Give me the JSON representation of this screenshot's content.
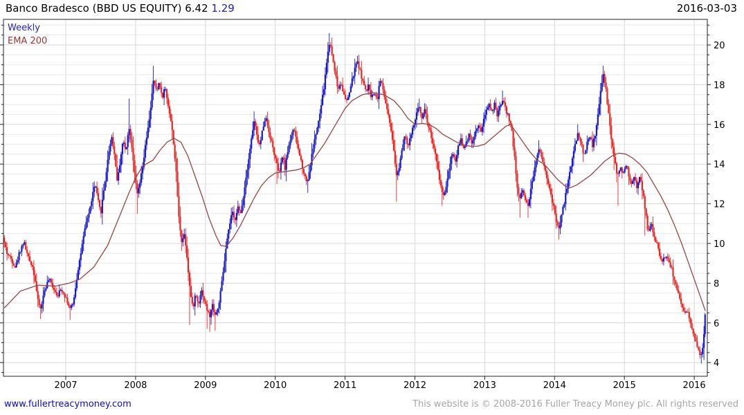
{
  "header": {
    "title_main": "Banco Bradesco (BBD US EQUITY) 6.42",
    "title_change": "1.29",
    "date": "2016-03-03"
  },
  "legend": {
    "timeframe": "Weekly",
    "overlay": "EMA 200"
  },
  "footer": {
    "site": "www.fullertreacymoney.com",
    "copyright": "This website is © 2008-2016 Fuller Treacy Money plc. All rights reserved"
  },
  "colors": {
    "up_candle": "#1717cd",
    "down_candle": "#e82525",
    "ema_line": "#9a4343",
    "grid_minor": "#e8e8e8",
    "grid_major": "#d7d7d7",
    "border": "#222222",
    "change_text": "#1a1ac8",
    "weekly_text": "#2323bb",
    "ema_text": "#993333",
    "link_text": "#0a0acc",
    "copyright_text": "#a5a5a5"
  },
  "chart_data": {
    "type": "candlestick",
    "title": "Banco Bradesco (BBD US EQUITY)",
    "timeframe": "Weekly",
    "overlay": "EMA 200",
    "last_price": 6.42,
    "change": 1.29,
    "date": "2016-03-03",
    "x_ticks": [
      2007,
      2008,
      2009,
      2010,
      2011,
      2012,
      2013,
      2014,
      2015,
      2016
    ],
    "y_ticks": [
      4,
      6,
      8,
      10,
      12,
      14,
      16,
      18,
      20
    ],
    "y_minor_step": 0.5,
    "x_range": [
      2006.08,
      2016.22
    ],
    "y_range": [
      3.3,
      21.3
    ],
    "legend_position": "top-left",
    "grid": true,
    "close_anchors": [
      [
        2006.08,
        10.1
      ],
      [
        2006.1,
        10.3
      ],
      [
        2006.16,
        9.5
      ],
      [
        2006.22,
        9.2
      ],
      [
        2006.28,
        8.8
      ],
      [
        2006.34,
        9.6
      ],
      [
        2006.4,
        10.1
      ],
      [
        2006.46,
        9.3
      ],
      [
        2006.52,
        8.9
      ],
      [
        2006.56,
        8.2
      ],
      [
        2006.6,
        7.1
      ],
      [
        2006.64,
        6.7,
        6.2
      ],
      [
        2006.7,
        7.7
      ],
      [
        2006.76,
        8.2
      ],
      [
        2006.82,
        7.8
      ],
      [
        2006.88,
        7.4
      ],
      [
        2006.94,
        7.7
      ],
      [
        2007.0,
        7.3
      ],
      [
        2007.06,
        6.7,
        6.15
      ],
      [
        2007.1,
        6.9
      ],
      [
        2007.14,
        7.8
      ],
      [
        2007.18,
        8.8
      ],
      [
        2007.22,
        9.6
      ],
      [
        2007.26,
        10.4
      ],
      [
        2007.3,
        11.2
      ],
      [
        2007.34,
        11.6
      ],
      [
        2007.38,
        12.4
      ],
      [
        2007.42,
        13.0
      ],
      [
        2007.46,
        12.2
      ],
      [
        2007.5,
        11.5
      ],
      [
        2007.54,
        12.6
      ],
      [
        2007.58,
        13.6
      ],
      [
        2007.62,
        14.7
      ],
      [
        2007.66,
        15.4
      ],
      [
        2007.7,
        14.4
      ],
      [
        2007.74,
        13.1
      ],
      [
        2007.78,
        14.2
      ],
      [
        2007.82,
        15.2
      ],
      [
        2007.86,
        14.6
      ],
      [
        2007.9,
        15.9,
        null,
        17.3
      ],
      [
        2007.94,
        15.1
      ],
      [
        2007.98,
        13.8
      ],
      [
        2008.02,
        12.4,
        11.5
      ],
      [
        2008.06,
        13.0
      ],
      [
        2008.1,
        13.8
      ],
      [
        2008.14,
        14.9
      ],
      [
        2008.18,
        15.8
      ],
      [
        2008.22,
        17.0
      ],
      [
        2008.26,
        18.3,
        null,
        18.95
      ],
      [
        2008.3,
        17.6
      ],
      [
        2008.34,
        18.2
      ],
      [
        2008.38,
        17.3
      ],
      [
        2008.42,
        17.9
      ],
      [
        2008.46,
        17.1
      ],
      [
        2008.5,
        16.3
      ],
      [
        2008.54,
        15.2
      ],
      [
        2008.58,
        13.6
      ],
      [
        2008.62,
        11.3
      ],
      [
        2008.66,
        10.1
      ],
      [
        2008.7,
        10.5
      ],
      [
        2008.74,
        9.2
      ],
      [
        2008.78,
        7.6,
        5.9
      ],
      [
        2008.82,
        6.7
      ],
      [
        2008.86,
        7.5
      ],
      [
        2008.9,
        6.9
      ],
      [
        2008.94,
        7.7
      ],
      [
        2008.98,
        7.2
      ],
      [
        2009.02,
        6.7,
        5.7
      ],
      [
        2009.06,
        6.3,
        5.55
      ],
      [
        2009.1,
        6.9
      ],
      [
        2009.14,
        6.4,
        5.6
      ],
      [
        2009.18,
        6.7
      ],
      [
        2009.22,
        7.6
      ],
      [
        2009.26,
        8.7
      ],
      [
        2009.3,
        9.9
      ],
      [
        2009.34,
        10.8
      ],
      [
        2009.38,
        11.6
      ],
      [
        2009.42,
        11.1
      ],
      [
        2009.46,
        11.9
      ],
      [
        2009.5,
        11.4
      ],
      [
        2009.54,
        12.3
      ],
      [
        2009.58,
        13.3
      ],
      [
        2009.62,
        14.3
      ],
      [
        2009.66,
        15.3
      ],
      [
        2009.7,
        16.2,
        null,
        16.65
      ],
      [
        2009.74,
        15.3
      ],
      [
        2009.78,
        14.9
      ],
      [
        2009.82,
        15.8
      ],
      [
        2009.86,
        16.4
      ],
      [
        2009.9,
        15.8
      ],
      [
        2009.94,
        15.2
      ],
      [
        2009.98,
        14.6
      ],
      [
        2010.02,
        14.0,
        13.0
      ],
      [
        2010.06,
        13.5
      ],
      [
        2010.1,
        14.4
      ],
      [
        2010.14,
        13.8
      ],
      [
        2010.18,
        14.7
      ],
      [
        2010.22,
        15.3
      ],
      [
        2010.26,
        15.8
      ],
      [
        2010.3,
        15.2
      ],
      [
        2010.34,
        14.6
      ],
      [
        2010.38,
        14.0
      ],
      [
        2010.42,
        13.4
      ],
      [
        2010.46,
        13.1,
        12.55
      ],
      [
        2010.5,
        13.9
      ],
      [
        2010.54,
        14.8
      ],
      [
        2010.58,
        15.5
      ],
      [
        2010.62,
        16.1
      ],
      [
        2010.66,
        17.0
      ],
      [
        2010.7,
        17.9
      ],
      [
        2010.74,
        19.3
      ],
      [
        2010.78,
        20.2,
        null,
        20.6
      ],
      [
        2010.82,
        19.4
      ],
      [
        2010.86,
        18.6
      ],
      [
        2010.9,
        17.7
      ],
      [
        2010.94,
        18.2
      ],
      [
        2010.98,
        17.5
      ],
      [
        2011.02,
        17.1
      ],
      [
        2011.06,
        17.6
      ],
      [
        2011.1,
        18.2
      ],
      [
        2011.14,
        18.8
      ],
      [
        2011.18,
        19.2,
        null,
        19.45
      ],
      [
        2011.22,
        18.6
      ],
      [
        2011.26,
        18.1
      ],
      [
        2011.3,
        17.6
      ],
      [
        2011.34,
        18.0
      ],
      [
        2011.38,
        17.3
      ],
      [
        2011.42,
        17.7
      ],
      [
        2011.46,
        17.2
      ],
      [
        2011.5,
        18.3
      ],
      [
        2011.54,
        17.8
      ],
      [
        2011.58,
        17.1
      ],
      [
        2011.62,
        16.4
      ],
      [
        2011.66,
        15.6
      ],
      [
        2011.7,
        14.5
      ],
      [
        2011.74,
        13.3,
        12.1
      ],
      [
        2011.78,
        14.0
      ],
      [
        2011.82,
        14.9
      ],
      [
        2011.86,
        15.6
      ],
      [
        2011.9,
        14.8
      ],
      [
        2011.94,
        15.4
      ],
      [
        2011.98,
        15.9
      ],
      [
        2012.02,
        16.5
      ],
      [
        2012.06,
        16.9,
        null,
        17.3
      ],
      [
        2012.1,
        16.4
      ],
      [
        2012.14,
        16.8
      ],
      [
        2012.18,
        16.1
      ],
      [
        2012.22,
        15.6
      ],
      [
        2012.26,
        15.0
      ],
      [
        2012.3,
        14.3
      ],
      [
        2012.34,
        13.5
      ],
      [
        2012.38,
        12.7,
        11.9
      ],
      [
        2012.42,
        12.4
      ],
      [
        2012.46,
        13.2
      ],
      [
        2012.5,
        14.0
      ],
      [
        2012.54,
        14.6
      ],
      [
        2012.58,
        14.1
      ],
      [
        2012.62,
        14.9
      ],
      [
        2012.66,
        15.3
      ],
      [
        2012.7,
        14.7
      ],
      [
        2012.74,
        15.1
      ],
      [
        2012.78,
        15.6
      ],
      [
        2012.82,
        15.0
      ],
      [
        2012.86,
        15.5
      ],
      [
        2012.9,
        16.0
      ],
      [
        2012.94,
        15.6
      ],
      [
        2012.98,
        16.1
      ],
      [
        2013.02,
        16.6
      ],
      [
        2013.06,
        17.1
      ],
      [
        2013.1,
        16.6
      ],
      [
        2013.14,
        17.0
      ],
      [
        2013.18,
        16.4
      ],
      [
        2013.22,
        16.9
      ],
      [
        2013.26,
        17.3,
        null,
        17.7
      ],
      [
        2013.3,
        16.7
      ],
      [
        2013.34,
        16.4
      ],
      [
        2013.38,
        15.9
      ],
      [
        2013.42,
        14.6
      ],
      [
        2013.46,
        13.0
      ],
      [
        2013.5,
        12.2,
        11.3
      ],
      [
        2013.54,
        12.8
      ],
      [
        2013.58,
        12.2
      ],
      [
        2013.62,
        11.9,
        11.3
      ],
      [
        2013.66,
        12.8
      ],
      [
        2013.7,
        13.5
      ],
      [
        2013.74,
        14.2
      ],
      [
        2013.78,
        14.9,
        null,
        15.2
      ],
      [
        2013.82,
        14.3
      ],
      [
        2013.86,
        13.8
      ],
      [
        2013.9,
        13.2
      ],
      [
        2013.94,
        12.5
      ],
      [
        2013.98,
        11.9
      ],
      [
        2014.02,
        11.2
      ],
      [
        2014.06,
        10.7,
        10.2
      ],
      [
        2014.1,
        11.4
      ],
      [
        2014.14,
        12.1
      ],
      [
        2014.18,
        12.9
      ],
      [
        2014.22,
        13.6
      ],
      [
        2014.26,
        14.4
      ],
      [
        2014.3,
        15.1
      ],
      [
        2014.34,
        15.6,
        null,
        16.0
      ],
      [
        2014.38,
        15.0
      ],
      [
        2014.42,
        14.4
      ],
      [
        2014.46,
        15.0
      ],
      [
        2014.5,
        15.5
      ],
      [
        2014.54,
        14.9
      ],
      [
        2014.58,
        15.4
      ],
      [
        2014.62,
        16.4
      ],
      [
        2014.66,
        17.8
      ],
      [
        2014.7,
        18.5,
        null,
        18.95
      ],
      [
        2014.74,
        17.6
      ],
      [
        2014.78,
        16.3
      ],
      [
        2014.82,
        15.0
      ],
      [
        2014.86,
        14.2,
        13.7
      ],
      [
        2014.9,
        13.3,
        11.9
      ],
      [
        2014.94,
        13.9
      ],
      [
        2014.98,
        13.4
      ],
      [
        2015.02,
        14.0
      ],
      [
        2015.06,
        13.5
      ],
      [
        2015.1,
        12.9
      ],
      [
        2015.14,
        13.4
      ],
      [
        2015.18,
        12.8
      ],
      [
        2015.22,
        13.3
      ],
      [
        2015.26,
        12.7
      ],
      [
        2015.3,
        11.6,
        10.4
      ],
      [
        2015.34,
        10.6
      ],
      [
        2015.38,
        11.0
      ],
      [
        2015.42,
        10.5
      ],
      [
        2015.46,
        10.0
      ],
      [
        2015.5,
        9.5
      ],
      [
        2015.54,
        9.1
      ],
      [
        2015.58,
        9.4
      ],
      [
        2015.62,
        9.2
      ],
      [
        2015.66,
        8.9
      ],
      [
        2015.7,
        8.4
      ],
      [
        2015.74,
        7.9
      ],
      [
        2015.78,
        7.3
      ],
      [
        2015.82,
        6.8
      ],
      [
        2015.86,
        6.4
      ],
      [
        2015.9,
        6.6
      ],
      [
        2015.94,
        6.0
      ],
      [
        2015.98,
        5.6
      ],
      [
        2016.02,
        5.2
      ],
      [
        2016.06,
        4.6
      ],
      [
        2016.1,
        4.3,
        3.95
      ],
      [
        2016.13,
        5.0
      ],
      [
        2016.155,
        6.42
      ]
    ],
    "ema_200": [
      [
        2006.12,
        6.75
      ],
      [
        2006.35,
        7.6
      ],
      [
        2006.6,
        7.9
      ],
      [
        2006.85,
        7.85
      ],
      [
        2007.05,
        8.0
      ],
      [
        2007.2,
        8.2
      ],
      [
        2007.4,
        8.8
      ],
      [
        2007.6,
        9.9
      ],
      [
        2007.75,
        11.2
      ],
      [
        2007.9,
        12.5
      ],
      [
        2008.0,
        13.3
      ],
      [
        2008.1,
        13.9
      ],
      [
        2008.25,
        14.2
      ],
      [
        2008.35,
        14.7
      ],
      [
        2008.45,
        15.1
      ],
      [
        2008.55,
        15.3
      ],
      [
        2008.65,
        15.1
      ],
      [
        2008.75,
        14.4
      ],
      [
        2008.85,
        13.4
      ],
      [
        2008.95,
        12.4
      ],
      [
        2009.05,
        11.3
      ],
      [
        2009.15,
        10.4
      ],
      [
        2009.22,
        9.9
      ],
      [
        2009.3,
        9.85
      ],
      [
        2009.4,
        10.3
      ],
      [
        2009.5,
        10.9
      ],
      [
        2009.6,
        11.6
      ],
      [
        2009.7,
        12.3
      ],
      [
        2009.8,
        12.9
      ],
      [
        2009.9,
        13.3
      ],
      [
        2010.0,
        13.55
      ],
      [
        2010.1,
        13.6
      ],
      [
        2010.2,
        13.65
      ],
      [
        2010.3,
        13.7
      ],
      [
        2010.4,
        13.8
      ],
      [
        2010.5,
        14.0
      ],
      [
        2010.6,
        14.5
      ],
      [
        2010.7,
        15.0
      ],
      [
        2010.8,
        15.6
      ],
      [
        2010.9,
        16.2
      ],
      [
        2011.0,
        16.8
      ],
      [
        2011.1,
        17.2
      ],
      [
        2011.25,
        17.5
      ],
      [
        2011.4,
        17.6
      ],
      [
        2011.55,
        17.5
      ],
      [
        2011.7,
        17.2
      ],
      [
        2011.8,
        16.8
      ],
      [
        2011.9,
        16.3
      ],
      [
        2012.0,
        16.0
      ],
      [
        2012.1,
        16.05
      ],
      [
        2012.2,
        16.0
      ],
      [
        2012.3,
        15.8
      ],
      [
        2012.4,
        15.5
      ],
      [
        2012.5,
        15.3
      ],
      [
        2012.6,
        15.1
      ],
      [
        2012.7,
        14.95
      ],
      [
        2012.8,
        14.9
      ],
      [
        2012.9,
        14.9
      ],
      [
        2013.0,
        15.0
      ],
      [
        2013.1,
        15.3
      ],
      [
        2013.2,
        15.6
      ],
      [
        2013.3,
        15.9
      ],
      [
        2013.37,
        16.0
      ],
      [
        2013.45,
        15.6
      ],
      [
        2013.55,
        15.1
      ],
      [
        2013.65,
        14.6
      ],
      [
        2013.75,
        14.2
      ],
      [
        2013.85,
        14.0
      ],
      [
        2013.95,
        13.6
      ],
      [
        2014.05,
        13.2
      ],
      [
        2014.15,
        12.9
      ],
      [
        2014.22,
        12.8
      ],
      [
        2014.32,
        12.95
      ],
      [
        2014.42,
        13.2
      ],
      [
        2014.52,
        13.45
      ],
      [
        2014.62,
        13.8
      ],
      [
        2014.72,
        14.15
      ],
      [
        2014.82,
        14.4
      ],
      [
        2014.92,
        14.55
      ],
      [
        2015.02,
        14.5
      ],
      [
        2015.12,
        14.3
      ],
      [
        2015.22,
        14.0
      ],
      [
        2015.32,
        13.6
      ],
      [
        2015.42,
        13.0
      ],
      [
        2015.52,
        12.4
      ],
      [
        2015.62,
        11.7
      ],
      [
        2015.72,
        10.9
      ],
      [
        2015.82,
        10.0
      ],
      [
        2015.92,
        9.0
      ],
      [
        2016.0,
        8.2
      ],
      [
        2016.07,
        7.5
      ],
      [
        2016.12,
        7.0
      ],
      [
        2016.16,
        6.6
      ]
    ]
  }
}
